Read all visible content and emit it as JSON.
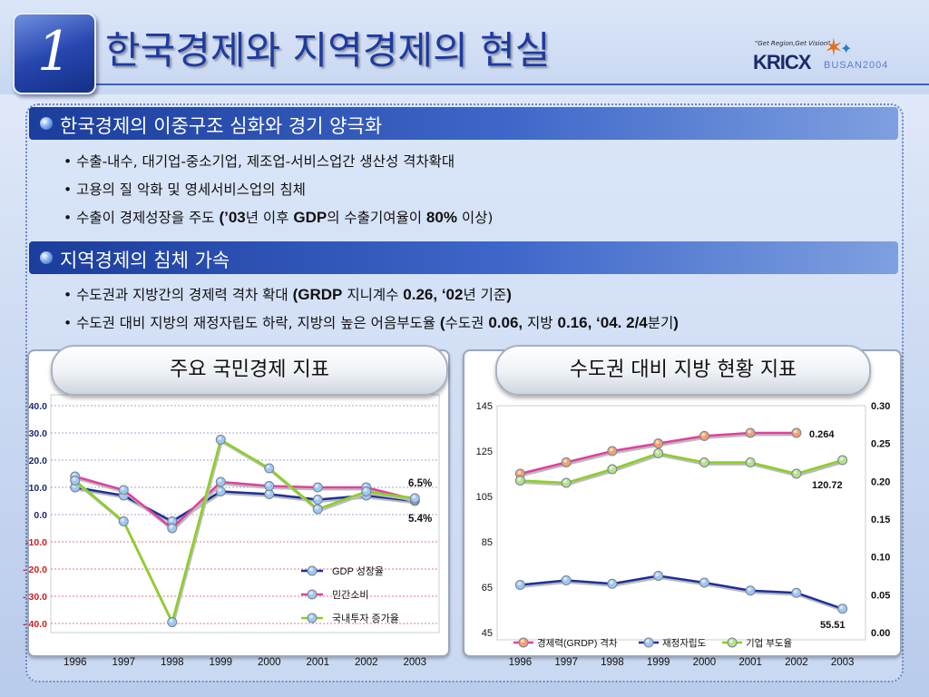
{
  "header": {
    "number": "1",
    "title": "한국경제와 지역경제의 현실"
  },
  "logo": {
    "tagline": "\"Get Region,Get Vision\"",
    "name": "KRICX",
    "sub": "BUSAN2004"
  },
  "section1": {
    "title": "한국경제의 이중구조 심화와 경기 양극화",
    "bullets": [
      {
        "parts": [
          [
            "• 수출-내수, 대기업-중소기업, 제조업-서비스업간 생산성 격차확대",
            false
          ]
        ]
      },
      {
        "parts": [
          [
            "• 고용의 질 악화 및 영세서비스업의 침체",
            false
          ]
        ]
      },
      {
        "parts": [
          [
            "• 수출이 경제성장을 주도 ",
            false
          ],
          [
            "(’03",
            true
          ],
          [
            "년 이후 ",
            false
          ],
          [
            "GDP",
            true
          ],
          [
            "의 수출기여율이 ",
            false
          ],
          [
            "80%",
            true
          ],
          [
            " 이상)",
            false
          ]
        ]
      }
    ]
  },
  "section2": {
    "title": "지역경제의 침체 가속",
    "bullets": [
      {
        "parts": [
          [
            "• 수도권과 지방간의 경제력 격차 확대 ",
            false
          ],
          [
            "(GRDP",
            true
          ],
          [
            " 지니계수 ",
            false
          ],
          [
            "0.26, ‘02",
            true
          ],
          [
            "년 기준",
            false
          ],
          [
            ")",
            true
          ]
        ]
      },
      {
        "parts": [
          [
            "• 수도권 대비 지방의 재정자립도 하락, 지방의 높은 어음부도율 ",
            false
          ],
          [
            "(",
            true
          ],
          [
            "수도권 ",
            false
          ],
          [
            "0.06,",
            true
          ],
          [
            " 지방 ",
            false
          ],
          [
            "0.16, ‘04. 2/4",
            true
          ],
          [
            "분기",
            false
          ],
          [
            ")",
            true
          ]
        ]
      }
    ]
  },
  "chart_data": [
    {
      "type": "line",
      "title": "주요 국민경제 지표",
      "categories": [
        "1996",
        "1997",
        "1998",
        "1999",
        "2000",
        "2001",
        "2002",
        "2003"
      ],
      "ylim": [
        -40,
        40
      ],
      "yticks": [
        "40.0",
        "30.0",
        "20.0",
        "10.0",
        "0.0",
        "-10.0",
        "- 20.0",
        "- 30.0",
        "- 40.0"
      ],
      "legend_placement": "bottom-center",
      "series": [
        {
          "name": "GDP 성장율",
          "color": "#1f2f9a",
          "values": [
            10.0,
            7.0,
            -2.5,
            8.5,
            7.5,
            5.5,
            7.0,
            5.0
          ]
        },
        {
          "name": "민간소비",
          "color": "#e040a0",
          "values": [
            14.0,
            9.0,
            -5.0,
            12.0,
            10.5,
            10.0,
            10.0,
            5.5
          ]
        },
        {
          "name": "국내투자 증가율",
          "color": "#8ad020",
          "values": [
            12.5,
            -2.5,
            -39.5,
            27.5,
            17.0,
            2.0,
            8.5,
            6.0
          ]
        }
      ],
      "annotations": [
        {
          "text": "6.5%"
        },
        {
          "text": "5.4%"
        }
      ]
    },
    {
      "type": "line",
      "title": "수도권 대비 지방 현황 지표",
      "categories": [
        "1996",
        "1997",
        "1998",
        "1999",
        "2000",
        "2001",
        "2002",
        "2003"
      ],
      "ylim": [
        45,
        145
      ],
      "yticks": [
        "145",
        "125",
        "105",
        "85",
        "65",
        "45"
      ],
      "ylim_right": [
        0,
        0.3
      ],
      "yticks_right": [
        "0.30",
        "0.25",
        "0.20",
        "0.15",
        "0.10",
        "0.05",
        "0.00"
      ],
      "legend_placement": "bottom",
      "series": [
        {
          "name": "경제력(GRDP) 격차",
          "color": "#e040a0",
          "axis": "right",
          "values": [
            0.21,
            0.225,
            0.24,
            0.25,
            0.26,
            0.264,
            0.264,
            null
          ]
        },
        {
          "name": "재정자립도",
          "color": "#1f2f9a",
          "axis": "left",
          "values": [
            66,
            68,
            66.5,
            70,
            67,
            63.5,
            62.5,
            55.5
          ]
        },
        {
          "name": "기업 부도율",
          "color": "#8ad020",
          "axis": "left",
          "values": [
            112,
            111,
            117,
            124,
            120,
            120,
            115,
            121
          ]
        }
      ],
      "annotations": [
        {
          "text": "0.264"
        },
        {
          "text": "120.72"
        },
        {
          "text": "55.51"
        }
      ]
    }
  ]
}
